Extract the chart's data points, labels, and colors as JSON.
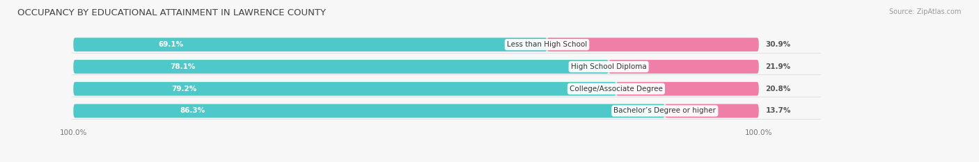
{
  "title": "OCCUPANCY BY EDUCATIONAL ATTAINMENT IN LAWRENCE COUNTY",
  "source": "Source: ZipAtlas.com",
  "categories": [
    "Less than High School",
    "High School Diploma",
    "College/Associate Degree",
    "Bachelor’s Degree or higher"
  ],
  "owner_values": [
    69.1,
    78.1,
    79.2,
    86.3
  ],
  "renter_values": [
    30.9,
    21.9,
    20.8,
    13.7
  ],
  "owner_color": "#4EC8C8",
  "renter_color": "#F07FA8",
  "bar_bg_color": "#E2E2E2",
  "bg_color": "#F7F7F7",
  "label_color_owner": "#FFFFFF",
  "bar_height": 0.62,
  "title_fontsize": 9.5,
  "source_fontsize": 7,
  "bar_label_fontsize": 7.5,
  "category_fontsize": 7.5,
  "legend_fontsize": 8,
  "axis_label_fontsize": 7.5,
  "total_width": 100
}
